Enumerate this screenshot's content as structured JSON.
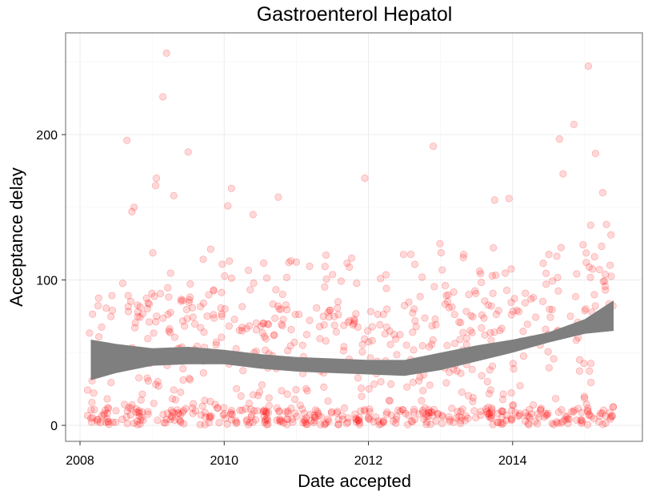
{
  "chart_data": {
    "type": "scatter",
    "title": "Gastroenterol Hepatol",
    "xlabel": "Date accepted",
    "ylabel": "Acceptance delay",
    "xlim": [
      2007.8,
      2015.8
    ],
    "ylim": [
      -11,
      270
    ],
    "x_ticks": [
      2008,
      2010,
      2012,
      2014
    ],
    "x_tick_labels": [
      "2008",
      "2010",
      "2012",
      "2014"
    ],
    "y_ticks": [
      0,
      100,
      200
    ],
    "y_tick_labels": [
      "0",
      "100",
      "200"
    ],
    "grid": true,
    "point_color": "#ff0000",
    "point_opacity": 0.15,
    "ribbon_color": "#7f7f7f",
    "smooth_band": {
      "x": [
        2008.15,
        2008.5,
        2009.0,
        2009.5,
        2010.0,
        2010.5,
        2011.0,
        2011.5,
        2012.0,
        2012.5,
        2013.0,
        2013.5,
        2014.0,
        2014.5,
        2015.0,
        2015.4
      ],
      "lower": [
        31,
        36,
        41,
        42,
        42,
        39,
        37,
        36,
        35,
        34,
        38,
        44,
        50,
        57,
        63,
        65
      ],
      "upper": [
        59,
        56,
        53,
        54,
        52,
        49,
        47,
        46,
        45,
        45,
        50,
        55,
        59,
        64,
        73,
        86
      ]
    },
    "outliers": [
      {
        "x": 2008.65,
        "y": 196
      },
      {
        "x": 2008.72,
        "y": 147
      },
      {
        "x": 2008.75,
        "y": 150
      },
      {
        "x": 2009.05,
        "y": 165
      },
      {
        "x": 2009.06,
        "y": 170
      },
      {
        "x": 2009.15,
        "y": 226
      },
      {
        "x": 2009.2,
        "y": 256
      },
      {
        "x": 2009.3,
        "y": 158
      },
      {
        "x": 2009.5,
        "y": 188
      },
      {
        "x": 2010.05,
        "y": 151
      },
      {
        "x": 2010.1,
        "y": 163
      },
      {
        "x": 2010.4,
        "y": 145
      },
      {
        "x": 2010.75,
        "y": 157
      },
      {
        "x": 2011.95,
        "y": 170
      },
      {
        "x": 2012.9,
        "y": 192
      },
      {
        "x": 2013.75,
        "y": 155
      },
      {
        "x": 2013.95,
        "y": 156
      },
      {
        "x": 2014.65,
        "y": 197
      },
      {
        "x": 2014.7,
        "y": 173
      },
      {
        "x": 2014.85,
        "y": 207
      },
      {
        "x": 2015.05,
        "y": 247
      },
      {
        "x": 2015.15,
        "y": 187
      },
      {
        "x": 2015.25,
        "y": 160
      }
    ]
  }
}
